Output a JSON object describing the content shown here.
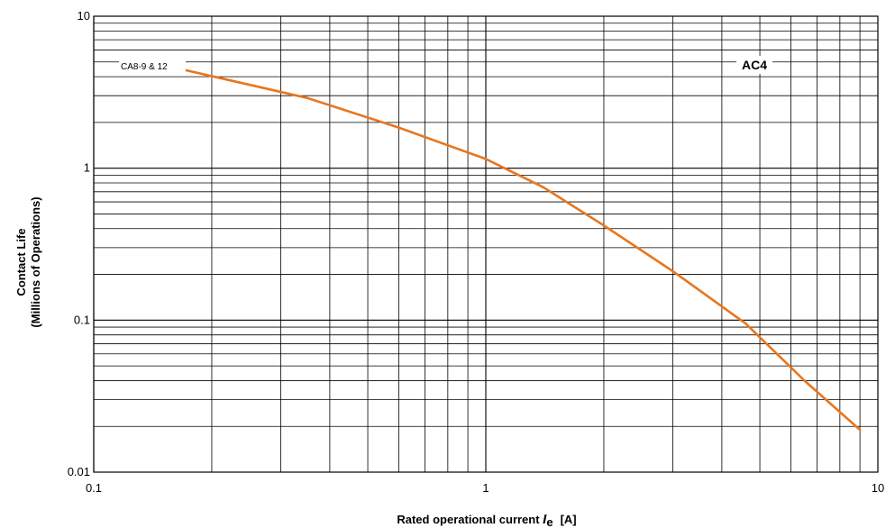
{
  "chart_data": {
    "type": "line",
    "x_scale": "log",
    "y_scale": "log",
    "xlim": [
      0.1,
      10
    ],
    "ylim": [
      0.01,
      10
    ],
    "grid": true,
    "x_ticks": [
      "0.1",
      "1",
      "10"
    ],
    "y_ticks": [
      "10",
      "1",
      "0.1",
      "0.01"
    ],
    "xlabel": {
      "prefix": "Rated operational current ",
      "symbol": "I",
      "subscript": "e",
      "suffix": "[A]"
    },
    "ylabel": [
      "Contact Life",
      "(Millions of Operations)"
    ],
    "annotations": {
      "category": "AC4",
      "series_label": "CA8-9 & 12"
    },
    "series": [
      {
        "name": "CA8-9 & 12",
        "color": "#e8761e",
        "points": [
          {
            "x": 0.16,
            "y": 4.6
          },
          {
            "x": 0.35,
            "y": 2.9
          },
          {
            "x": 0.6,
            "y": 1.85
          },
          {
            "x": 1.0,
            "y": 1.15
          },
          {
            "x": 1.4,
            "y": 0.75
          },
          {
            "x": 2.0,
            "y": 0.42
          },
          {
            "x": 3.0,
            "y": 0.21
          },
          {
            "x": 4.6,
            "y": 0.095
          },
          {
            "x": 6.5,
            "y": 0.04
          },
          {
            "x": 9.0,
            "y": 0.019
          }
        ]
      }
    ]
  }
}
